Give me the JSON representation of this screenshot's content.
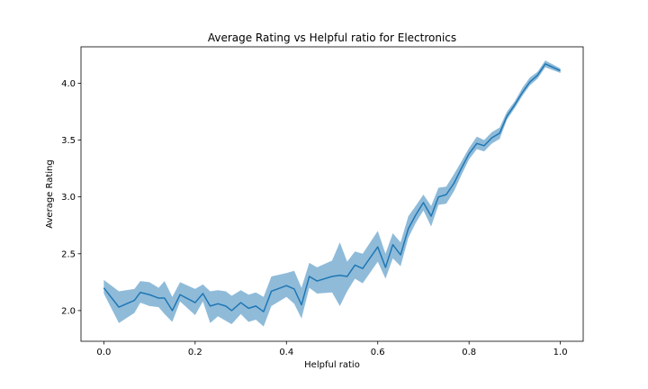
{
  "chart_data": {
    "type": "line",
    "title": "Average Rating vs Helpful ratio for Electronics",
    "xlabel": "Helpful ratio",
    "ylabel": "Average Rating",
    "xlim": [
      -0.05,
      1.05
    ],
    "ylim": [
      1.73,
      4.32
    ],
    "xticks": [
      0.0,
      0.2,
      0.4,
      0.6,
      0.8,
      1.0
    ],
    "xtick_labels": [
      "0.0",
      "0.2",
      "0.4",
      "0.6",
      "0.8",
      "1.0"
    ],
    "yticks": [
      2.0,
      2.5,
      3.0,
      3.5,
      4.0
    ],
    "ytick_labels": [
      "2.0",
      "2.5",
      "3.0",
      "3.5",
      "4.0"
    ],
    "grid": false,
    "colors": {
      "line": "#1f77b4",
      "band": "#1f77b4"
    },
    "series": [
      {
        "x": [
          0.0,
          0.033,
          0.067,
          0.08,
          0.1,
          0.12,
          0.133,
          0.15,
          0.167,
          0.2,
          0.217,
          0.233,
          0.25,
          0.267,
          0.28,
          0.3,
          0.317,
          0.333,
          0.35,
          0.367,
          0.4,
          0.417,
          0.433,
          0.45,
          0.467,
          0.5,
          0.517,
          0.533,
          0.55,
          0.567,
          0.6,
          0.617,
          0.633,
          0.65,
          0.667,
          0.683,
          0.7,
          0.717,
          0.733,
          0.75,
          0.767,
          0.783,
          0.8,
          0.817,
          0.833,
          0.85,
          0.867,
          0.883,
          0.9,
          0.917,
          0.933,
          0.95,
          0.967,
          1.0
        ],
        "y": [
          2.2,
          2.03,
          2.09,
          2.16,
          2.14,
          2.11,
          2.11,
          2.0,
          2.14,
          2.07,
          2.15,
          2.04,
          2.06,
          2.04,
          2.0,
          2.07,
          2.02,
          2.04,
          1.99,
          2.17,
          2.22,
          2.19,
          2.05,
          2.3,
          2.26,
          2.3,
          2.31,
          2.3,
          2.4,
          2.37,
          2.56,
          2.38,
          2.58,
          2.49,
          2.72,
          2.84,
          2.95,
          2.83,
          3.0,
          3.02,
          3.12,
          3.25,
          3.38,
          3.47,
          3.45,
          3.52,
          3.56,
          3.71,
          3.81,
          3.92,
          4.01,
          4.07,
          4.17,
          4.11
        ],
        "y_lower": [
          2.15,
          1.89,
          1.98,
          2.07,
          2.04,
          2.03,
          1.97,
          1.9,
          2.08,
          1.96,
          2.08,
          1.89,
          1.95,
          1.91,
          1.88,
          1.97,
          1.9,
          1.92,
          1.86,
          2.04,
          2.12,
          2.06,
          1.93,
          2.2,
          2.15,
          2.16,
          2.04,
          2.17,
          2.28,
          2.24,
          2.43,
          2.28,
          2.46,
          2.39,
          2.64,
          2.77,
          2.88,
          2.74,
          2.93,
          2.94,
          3.05,
          3.19,
          3.33,
          3.42,
          3.4,
          3.47,
          3.51,
          3.68,
          3.78,
          3.89,
          3.98,
          4.04,
          4.14,
          4.09
        ],
        "y_upper": [
          2.27,
          2.17,
          2.19,
          2.26,
          2.25,
          2.2,
          2.26,
          2.12,
          2.25,
          2.19,
          2.23,
          2.17,
          2.18,
          2.17,
          2.13,
          2.18,
          2.14,
          2.16,
          2.12,
          2.3,
          2.33,
          2.35,
          2.2,
          2.42,
          2.38,
          2.44,
          2.6,
          2.43,
          2.52,
          2.5,
          2.7,
          2.5,
          2.68,
          2.6,
          2.83,
          2.92,
          3.02,
          2.92,
          3.08,
          3.09,
          3.2,
          3.31,
          3.43,
          3.53,
          3.5,
          3.57,
          3.61,
          3.75,
          3.84,
          3.96,
          4.05,
          4.1,
          4.2,
          4.13
        ]
      }
    ]
  }
}
